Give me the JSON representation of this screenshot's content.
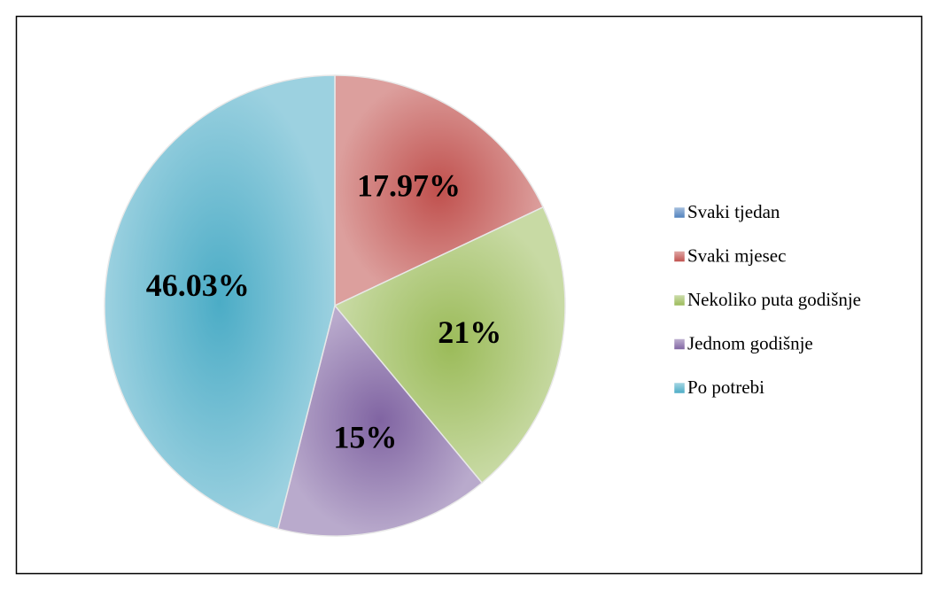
{
  "chart_data": {
    "type": "pie",
    "categories": [
      "Svaki tjedan",
      "Svaki mjesec",
      "Nekoliko puta godišnje",
      "Jednom godišnje",
      "Po potrebi"
    ],
    "values": [
      0,
      17.97,
      21,
      15,
      46.03
    ],
    "value_labels": [
      null,
      "17.97%",
      "21%",
      "15%",
      "46.03%"
    ],
    "colors": [
      "#4f81bd",
      "#c0504d",
      "#9bbb59",
      "#8064a2",
      "#4bacc6"
    ],
    "legend": "right"
  }
}
